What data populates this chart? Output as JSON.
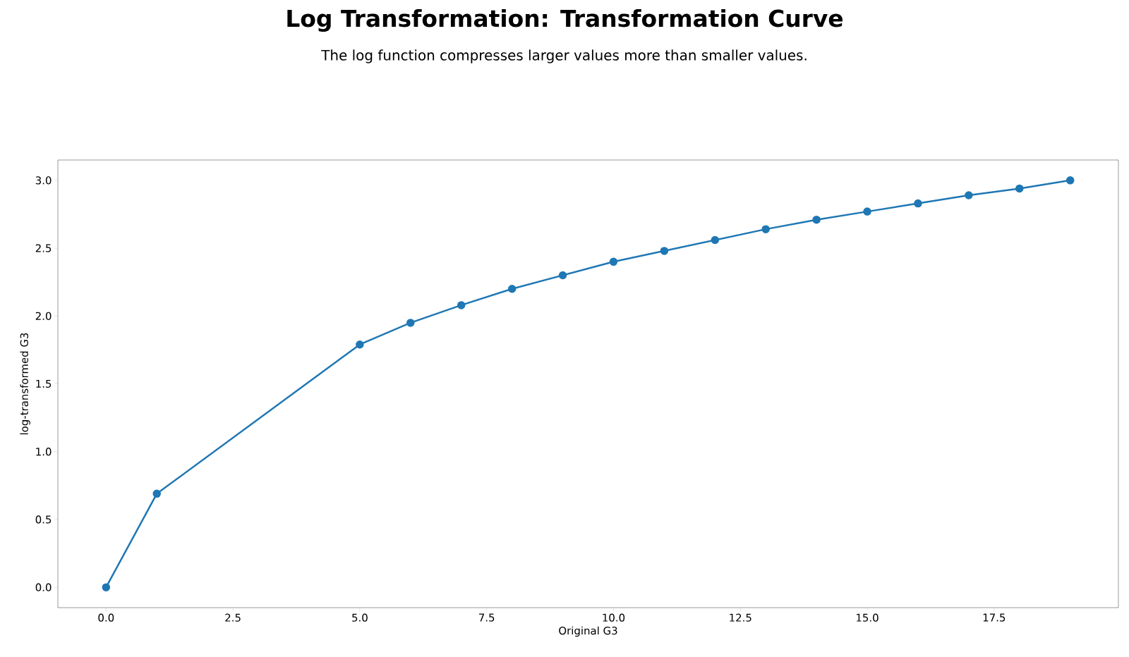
{
  "chart_data": {
    "type": "line",
    "title": "Log Transformation: Transformation Curve",
    "subtitle": "The log function compresses larger values more than smaller values.",
    "xlabel": "Original G3",
    "ylabel": "log-transformed G3",
    "x": [
      0,
      1,
      5,
      6,
      7,
      8,
      9,
      10,
      11,
      12,
      13,
      14,
      15,
      16,
      17,
      18,
      19
    ],
    "series": [
      {
        "color": "#1f77b4",
        "values": [
          0,
          0.69,
          1.79,
          1.95,
          2.08,
          2.2,
          2.3,
          2.4,
          2.48,
          2.56,
          2.64,
          2.71,
          2.77,
          2.83,
          2.89,
          2.94,
          3.0
        ]
      }
    ],
    "xlim": [
      -0.95,
      19.95
    ],
    "ylim": [
      -0.15,
      3.15
    ],
    "xticks": [
      {
        "value": 0,
        "label": "0.0"
      },
      {
        "value": 2.5,
        "label": "2.5"
      },
      {
        "value": 5,
        "label": "5.0"
      },
      {
        "value": 7.5,
        "label": "7.5"
      },
      {
        "value": 10,
        "label": "10.0"
      },
      {
        "value": 12.5,
        "label": "12.5"
      },
      {
        "value": 15,
        "label": "15.0"
      },
      {
        "value": 17.5,
        "label": "17.5"
      }
    ],
    "yticks": [
      {
        "value": 0,
        "label": "0.0"
      },
      {
        "value": 0.5,
        "label": "0.5"
      },
      {
        "value": 1,
        "label": "1.0"
      },
      {
        "value": 1.5,
        "label": "1.5"
      },
      {
        "value": 2,
        "label": "2.0"
      },
      {
        "value": 2.5,
        "label": "2.5"
      },
      {
        "value": 3,
        "label": "3.0"
      }
    ],
    "marker": "circle",
    "line_style": "solid",
    "grid": false
  }
}
